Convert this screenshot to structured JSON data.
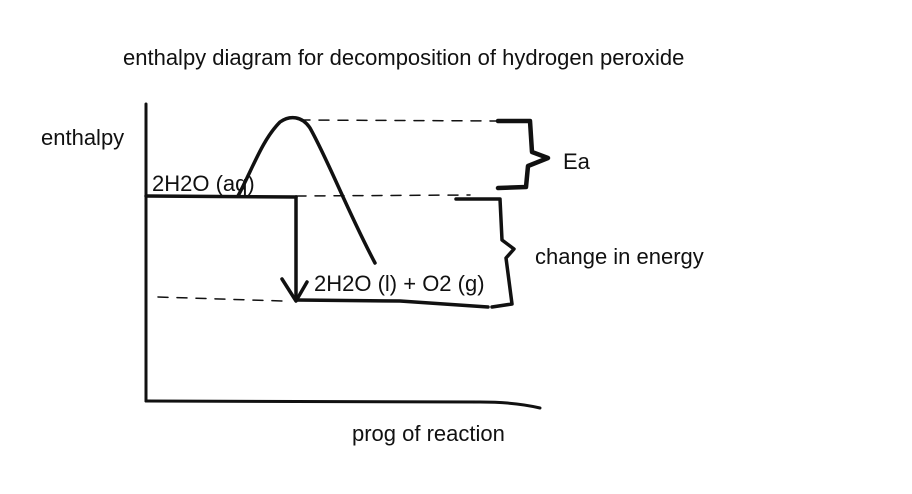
{
  "title": "enthalpy diagram for decomposition of hydrogen peroxide",
  "axes": {
    "y_label": "enthalpy",
    "x_label": "prog of reaction"
  },
  "species": {
    "reactant": "2H2O (aq)",
    "product": "2H2O (l) + O2 (g)"
  },
  "annotations": {
    "activation_energy": "Ea",
    "energy_change": "change in energy"
  },
  "colors": {
    "ink": "#111111",
    "background": "#ffffff"
  }
}
